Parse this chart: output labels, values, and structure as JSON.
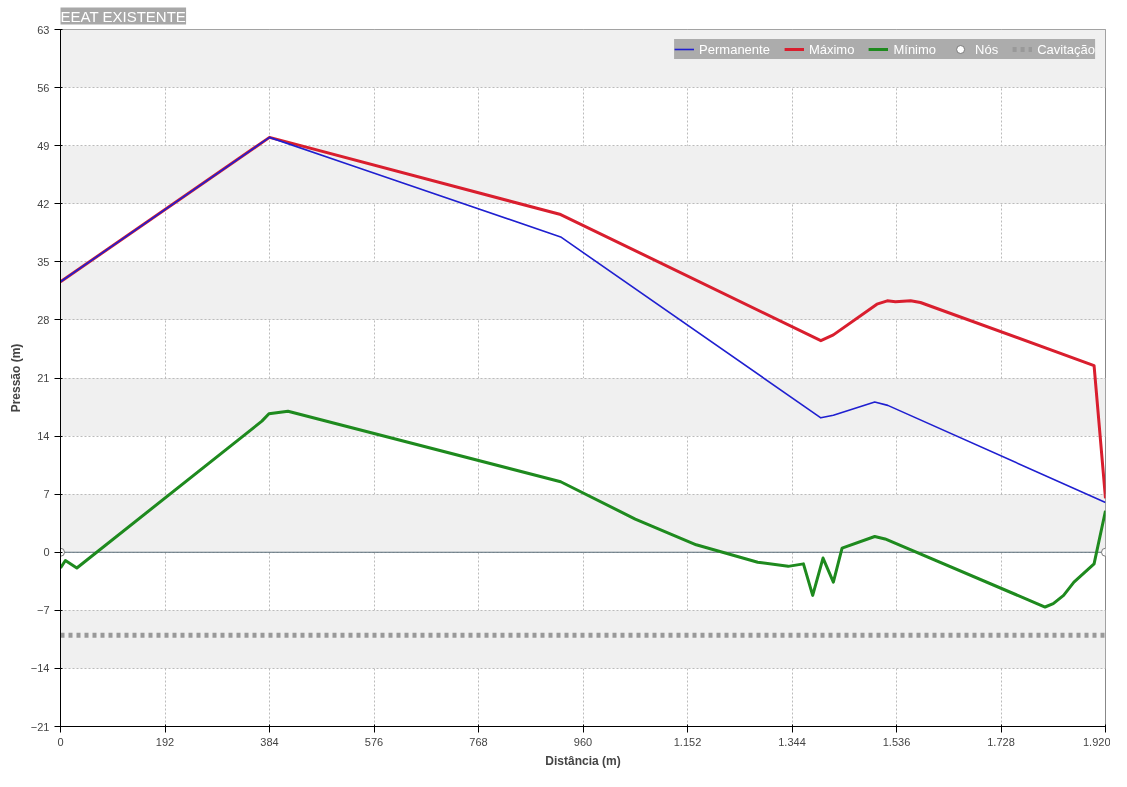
{
  "chart_data": {
    "type": "line",
    "title": "EEAT EXISTENTE",
    "xlabel": "Distância (m)",
    "ylabel": "Pressão (m)",
    "xlim": [
      0,
      1920
    ],
    "ylim": [
      -21,
      63
    ],
    "xticks": [
      0,
      192,
      384,
      576,
      768,
      960,
      {
        "value": 1152,
        "label": "1.152"
      },
      {
        "value": 1344,
        "label": "1.344"
      },
      {
        "value": 1536,
        "label": "1.536"
      },
      {
        "value": 1728,
        "label": "1.728"
      },
      {
        "value": 1920,
        "label": "1.920"
      }
    ],
    "yticks": [
      -21,
      -14,
      -7,
      0,
      7,
      14,
      21,
      28,
      35,
      42,
      49,
      56,
      63
    ],
    "grid": true,
    "legend": "top right",
    "line_style": "solid",
    "series": [
      {
        "name": "Permanente",
        "color": "#1f1fd0",
        "x": [
          0,
          384,
          531,
          919,
          1397,
          1420,
          1496,
          1520,
          1920
        ],
        "values": [
          32.6,
          50.0,
          46.7,
          38.0,
          16.2,
          16.5,
          18.1,
          17.7,
          6.0
        ]
      },
      {
        "name": "Máximo",
        "color": "#d91e2e",
        "x": [
          0,
          384,
          919,
          1397,
          1420,
          1500,
          1519,
          1534,
          1562,
          1580,
          1899,
          1920
        ],
        "values": [
          32.6,
          50.0,
          40.7,
          25.5,
          26.2,
          29.9,
          30.3,
          30.2,
          30.3,
          30.1,
          22.5,
          6.5
        ]
      },
      {
        "name": "Mínimo",
        "color": "#1e8a1e",
        "x": [
          0,
          9,
          30,
          370,
          383,
          418,
          919,
          1056,
          1168,
          1281,
          1337,
          1365,
          1382,
          1401,
          1420,
          1436,
          1496,
          1515,
          1809,
          1824,
          1843,
          1862,
          1899,
          1920
        ],
        "values": [
          -1.9,
          -1.0,
          -1.9,
          15.8,
          16.7,
          17.0,
          8.5,
          4.0,
          0.9,
          -1.2,
          -1.7,
          -1.4,
          -5.2,
          -0.7,
          -3.6,
          0.5,
          1.9,
          1.6,
          -6.6,
          -6.2,
          -5.2,
          -3.6,
          -1.4,
          5.0
        ]
      },
      {
        "name": "Nós",
        "type": "scatter",
        "marker": "circle",
        "color": "#ffffff",
        "x": [
          0,
          1920
        ],
        "values": [
          0,
          0
        ]
      }
    ],
    "ref_lines": [
      {
        "axis": "y",
        "value": 0,
        "color": "#5a6e7a",
        "line_style": "solid"
      },
      {
        "axis": "y",
        "value": -10,
        "label": "Cavitação",
        "color": "#999999",
        "line_style": "dotted"
      }
    ]
  }
}
